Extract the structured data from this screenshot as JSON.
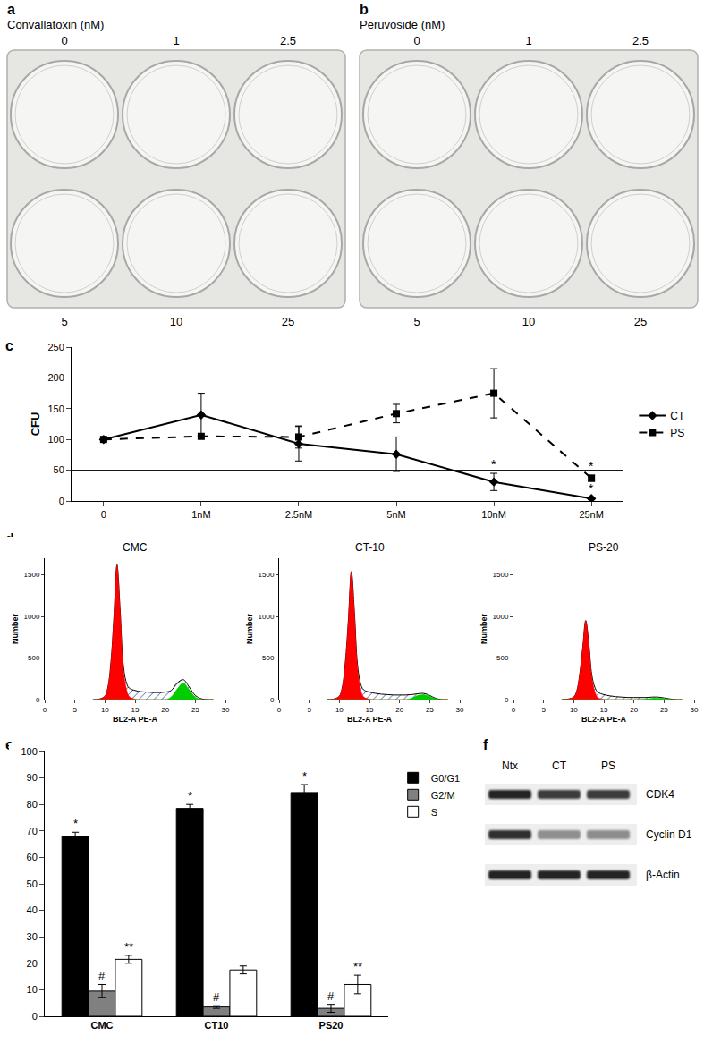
{
  "panels": [
    {
      "label": "a",
      "title": "Convallatoxin (nM)",
      "doses": [
        0,
        1,
        2.5,
        5,
        10,
        25
      ]
    },
    {
      "label": "b",
      "title": "Peruvoside (nM)",
      "doses": [
        0,
        1,
        2.5,
        5,
        10,
        25
      ]
    }
  ],
  "chart_data": [
    {
      "label": "c",
      "type": "line",
      "categories": [
        "0",
        "1nM",
        "2.5nM",
        "5nM",
        "10nM",
        "25nM"
      ],
      "y_label": "CFU",
      "ylim": [
        0,
        250
      ],
      "yticks": [
        0,
        50,
        100,
        150,
        200,
        250
      ],
      "reference_value": 50,
      "legend": "right",
      "series": [
        {
          "name": "CT",
          "color": "#000000",
          "marker": "diamond",
          "line_style": "solid",
          "values": [
            100,
            140,
            93,
            76,
            31,
            4
          ],
          "errors": [
            0,
            35,
            28,
            28,
            14,
            2
          ],
          "significance": [
            null,
            null,
            null,
            null,
            "*",
            "*"
          ]
        },
        {
          "name": "PS",
          "color": "#000000",
          "marker": "square",
          "line_style": "dash",
          "values": [
            100,
            105,
            104,
            142,
            175,
            37
          ],
          "errors": [
            0,
            0,
            18,
            15,
            40,
            5
          ],
          "significance": [
            null,
            null,
            null,
            null,
            null,
            "*"
          ]
        }
      ]
    },
    {
      "label": "d",
      "type": "area",
      "title": "CMC",
      "x_label": "BL2-A PE-A",
      "y_label": "Number",
      "xlim": [
        0,
        30
      ],
      "xticks": [
        0,
        5,
        10,
        15,
        20,
        25,
        30
      ],
      "ylim": [
        0,
        1700
      ],
      "yticks": [
        0,
        500,
        1000,
        1500
      ],
      "x": [
        8,
        9,
        10,
        10.5,
        11,
        11.5,
        12,
        12.5,
        13,
        13.5,
        14,
        15,
        16,
        17,
        18,
        19,
        20,
        21,
        22,
        23,
        24,
        25,
        26,
        27,
        28
      ],
      "series": [
        {
          "color": "#3050b0",
          "values": [
            0,
            5,
            40,
            150,
            450,
            1000,
            1620,
            1100,
            450,
            220,
            140,
            110,
            95,
            90,
            85,
            85,
            90,
            110,
            200,
            240,
            150,
            50,
            10,
            0,
            0
          ]
        },
        {
          "color": "#ff0000",
          "values": [
            0,
            5,
            40,
            150,
            450,
            1000,
            1620,
            1100,
            420,
            150,
            40,
            5,
            0,
            0,
            0,
            0,
            0,
            0,
            0,
            0,
            0,
            0,
            0,
            0,
            0
          ]
        },
        {
          "color": "#00cc00",
          "values": [
            0,
            0,
            0,
            0,
            0,
            0,
            0,
            0,
            0,
            0,
            0,
            0,
            0,
            0,
            0,
            0,
            0,
            30,
            130,
            200,
            120,
            30,
            0,
            0,
            0
          ]
        }
      ]
    },
    {
      "type": "area",
      "title": "CT-10",
      "x_label": "BL2-A PE-A",
      "y_label": "Number",
      "xlim": [
        0,
        30
      ],
      "xticks": [
        0,
        5,
        10,
        15,
        20,
        25,
        30
      ],
      "ylim": [
        0,
        1700
      ],
      "yticks": [
        0,
        500,
        1000,
        1500
      ],
      "x": [
        8,
        9,
        10,
        10.5,
        11,
        11.5,
        12,
        12.5,
        13,
        13.5,
        14,
        15,
        16,
        17,
        18,
        19,
        20,
        21,
        22,
        23,
        24,
        25,
        26,
        27,
        28
      ],
      "series": [
        {
          "color": "#3050b0",
          "values": [
            0,
            5,
            40,
            150,
            450,
            950,
            1540,
            1050,
            430,
            200,
            120,
            90,
            75,
            65,
            60,
            55,
            55,
            55,
            60,
            70,
            75,
            50,
            15,
            0,
            0
          ]
        },
        {
          "color": "#ff0000",
          "values": [
            0,
            5,
            40,
            150,
            450,
            950,
            1540,
            1050,
            400,
            140,
            35,
            5,
            0,
            0,
            0,
            0,
            0,
            0,
            0,
            0,
            0,
            0,
            0,
            0,
            0
          ]
        },
        {
          "color": "#00cc00",
          "values": [
            0,
            0,
            0,
            0,
            0,
            0,
            0,
            0,
            0,
            0,
            0,
            0,
            0,
            0,
            0,
            0,
            0,
            0,
            15,
            50,
            60,
            40,
            10,
            0,
            0
          ]
        }
      ]
    },
    {
      "type": "area",
      "title": "PS-20",
      "x_label": "BL2-A PE-A",
      "y_label": "Number",
      "xlim": [
        0,
        30
      ],
      "xticks": [
        0,
        5,
        10,
        15,
        20,
        25,
        30
      ],
      "ylim": [
        0,
        1700
      ],
      "yticks": [
        0,
        500,
        1000,
        1500
      ],
      "x": [
        8,
        9,
        10,
        10.5,
        11,
        11.5,
        12,
        12.5,
        13,
        13.5,
        14,
        15,
        16,
        17,
        18,
        19,
        20,
        21,
        22,
        23,
        24,
        25,
        26,
        27,
        28
      ],
      "series": [
        {
          "color": "#3050b0",
          "values": [
            0,
            5,
            30,
            100,
            300,
            620,
            950,
            680,
            300,
            150,
            90,
            60,
            45,
            35,
            30,
            25,
            25,
            25,
            25,
            30,
            30,
            20,
            8,
            0,
            0
          ]
        },
        {
          "color": "#ff0000",
          "values": [
            0,
            5,
            30,
            100,
            300,
            620,
            950,
            680,
            280,
            100,
            25,
            3,
            0,
            0,
            0,
            0,
            0,
            0,
            0,
            0,
            0,
            0,
            0,
            0,
            0
          ]
        },
        {
          "color": "#00cc00",
          "values": [
            0,
            0,
            0,
            0,
            0,
            0,
            0,
            0,
            0,
            0,
            0,
            0,
            0,
            0,
            0,
            0,
            0,
            0,
            5,
            15,
            20,
            12,
            3,
            0,
            0
          ]
        }
      ]
    },
    {
      "label": "e",
      "type": "bar",
      "categories": [
        "CMC",
        "CT10",
        "PS20"
      ],
      "ylim": [
        0,
        100
      ],
      "yticks": [
        0,
        10,
        20,
        30,
        40,
        50,
        60,
        70,
        80,
        90,
        100
      ],
      "legend": "right",
      "series": [
        {
          "name": "G0/G1",
          "color": "#000000",
          "values": [
            68,
            78.5,
            84.5
          ],
          "errors": [
            1.5,
            1.5,
            3
          ],
          "significance": [
            "*",
            "*",
            "*"
          ]
        },
        {
          "name": "G2/M",
          "color": "#808080",
          "values": [
            9.5,
            3.5,
            3
          ],
          "errors": [
            2.5,
            0.5,
            1.5
          ],
          "significance": [
            "#",
            "#",
            "#"
          ]
        },
        {
          "name": "S",
          "color": "#ffffff",
          "values": [
            21.5,
            17.5,
            12
          ],
          "errors": [
            1.5,
            1.5,
            3.5
          ],
          "significance": [
            "**",
            null,
            "**"
          ]
        }
      ]
    }
  ],
  "blot": {
    "label": "f",
    "lanes": [
      "Ntx",
      "CT",
      "PS"
    ],
    "rows": [
      {
        "name": "CDK4",
        "intensity": [
          0.9,
          0.8,
          0.8
        ]
      },
      {
        "name": "Cyclin D1",
        "intensity": [
          0.85,
          0.4,
          0.45
        ]
      },
      {
        "name": "β-Actin",
        "intensity": [
          0.9,
          0.9,
          0.9
        ]
      }
    ]
  }
}
